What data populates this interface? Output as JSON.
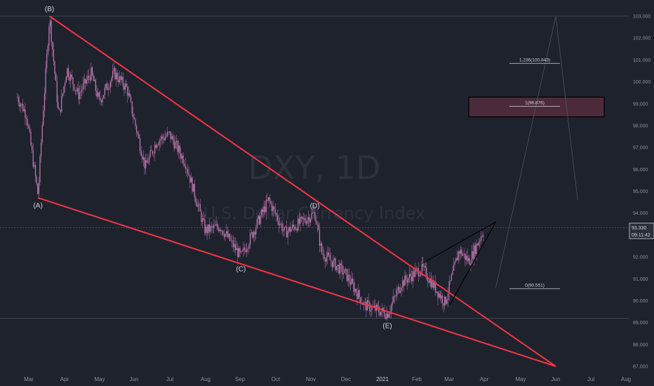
{
  "watermark": {
    "symbol": "DXY, 1D",
    "name": "U.S. Dollar Currency Index"
  },
  "current_price": {
    "value": "93.330",
    "countdown": "09:11:42"
  },
  "chart_data": {
    "type": "candlestick",
    "title": "",
    "x_ticks": [
      "Mar",
      "Apr",
      "May",
      "Jun",
      "Jul",
      "Aug",
      "Sep",
      "Oct",
      "Nov",
      "Dec",
      "2021",
      "Feb",
      "Mar",
      "Apr",
      "May",
      "Jun",
      "Jul",
      "Aug"
    ],
    "y_ticks": [
      "103.000",
      "102.000",
      "101.000",
      "100.000",
      "99.000",
      "98.000",
      "97.000",
      "96.000",
      "95.000",
      "94.000",
      "93.000",
      "92.000",
      "91.000",
      "90.000",
      "89.000",
      "88.000",
      "87.000"
    ],
    "ylim": [
      86.8,
      103.3
    ],
    "grid": "off",
    "price_path": [
      [
        "2020-02-20",
        99.3
      ],
      [
        "2020-02-28",
        98.5
      ],
      [
        "2020-03-09",
        94.8
      ],
      [
        "2020-03-12",
        97.5
      ],
      [
        "2020-03-19",
        103.0
      ],
      [
        "2020-03-27",
        98.4
      ],
      [
        "2020-04-03",
        100.6
      ],
      [
        "2020-04-13",
        99.4
      ],
      [
        "2020-04-24",
        100.4
      ],
      [
        "2020-05-01",
        99.1
      ],
      [
        "2020-05-14",
        100.4
      ],
      [
        "2020-05-25",
        99.7
      ],
      [
        "2020-06-10",
        96.1
      ],
      [
        "2020-06-20",
        97.3
      ],
      [
        "2020-07-01",
        97.6
      ],
      [
        "2020-07-15",
        96.3
      ],
      [
        "2020-08-01",
        93.2
      ],
      [
        "2020-08-14",
        93.4
      ],
      [
        "2020-09-01",
        92.0
      ],
      [
        "2020-09-25",
        94.6
      ],
      [
        "2020-10-09",
        93.1
      ],
      [
        "2020-11-04",
        94.0
      ],
      [
        "2020-11-10",
        92.2
      ],
      [
        "2020-12-01",
        91.2
      ],
      [
        "2020-12-17",
        89.8
      ],
      [
        "2021-01-06",
        89.4
      ],
      [
        "2021-01-18",
        90.8
      ],
      [
        "2021-02-05",
        91.5
      ],
      [
        "2021-02-25",
        89.9
      ],
      [
        "2021-03-09",
        92.3
      ],
      [
        "2021-03-18",
        91.8
      ],
      [
        "2021-03-31",
        93.3
      ]
    ],
    "wave_labels": [
      {
        "label": "(A)",
        "date": "2020-03-09",
        "price": 94.7
      },
      {
        "label": "(B)",
        "date": "2020-03-19",
        "price": 103.0
      },
      {
        "label": "(C)",
        "date": "2020-09-01",
        "price": 91.8
      },
      {
        "label": "(D)",
        "date": "2020-11-04",
        "price": 94.0
      },
      {
        "label": "(E)",
        "date": "2021-01-06",
        "price": 89.2
      }
    ],
    "trendlines": [
      {
        "name": "upper",
        "color": "#f23645",
        "from": [
          "2020-03-19",
          103.0
        ],
        "to": [
          "2021-06-01",
          87.0
        ]
      },
      {
        "name": "lower",
        "color": "#f23645",
        "from": [
          "2020-03-09",
          94.7
        ],
        "to": [
          "2021-06-01",
          87.0
        ]
      },
      {
        "name": "wedge-top",
        "color": "#000000",
        "from": [
          "2021-02-05",
          91.7
        ],
        "to": [
          "2021-04-10",
          93.6
        ]
      },
      {
        "name": "wedge-bottom",
        "color": "#000000",
        "from": [
          "2021-03-01",
          89.8
        ],
        "to": [
          "2021-04-10",
          93.6
        ]
      }
    ],
    "fib_levels": [
      {
        "label": "1.236(100.843)",
        "value": 100.843
      },
      {
        "label": "1(98.876)",
        "value": 98.876
      },
      {
        "label": "0(90.551)",
        "value": 90.551
      }
    ],
    "target_zone": [
      98.4,
      99.3
    ],
    "reference_lines": [
      103.0,
      93.33,
      89.2
    ],
    "projection_path": [
      [
        "2021-04-10",
        90.6
      ],
      [
        "2021-06-01",
        103.0
      ],
      [
        "2021-06-20",
        94.6
      ]
    ],
    "colors": {
      "background": "#1e222d",
      "candle": "#c77db6",
      "trendline": "#f23645",
      "wedge": "#000000",
      "zone": "#4b2b3a"
    }
  }
}
